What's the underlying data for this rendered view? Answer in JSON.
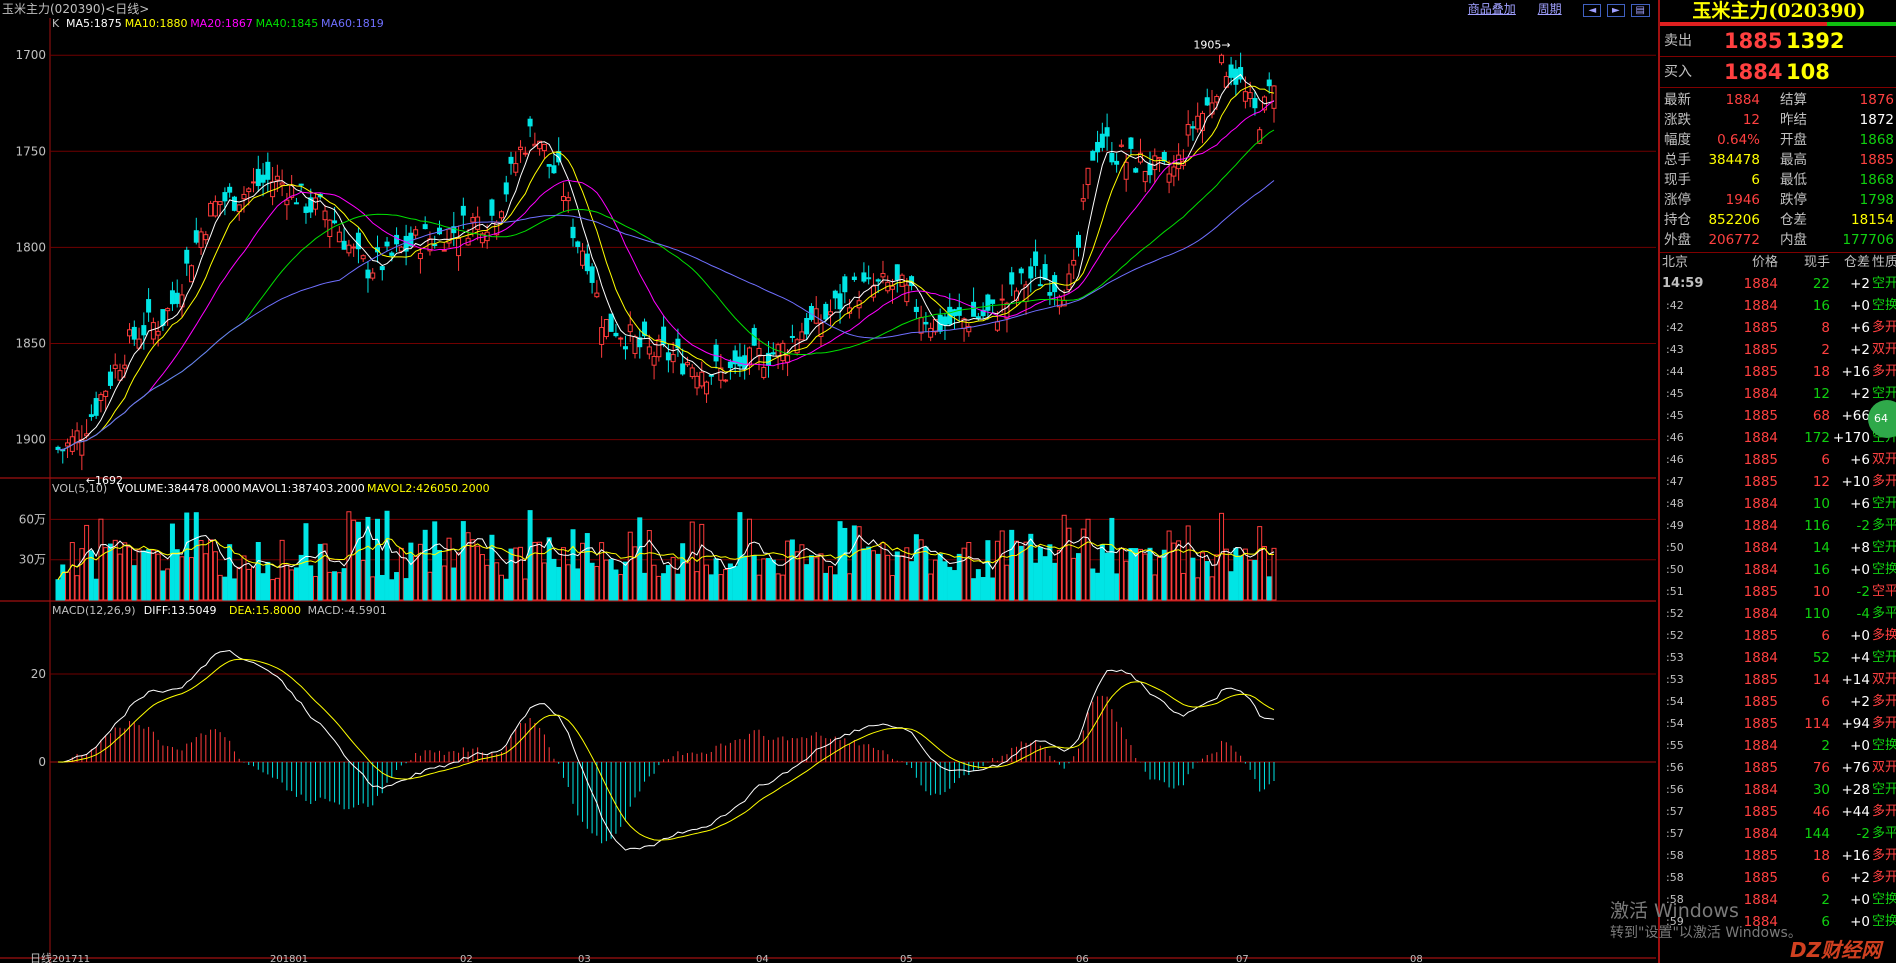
{
  "window": {
    "title": "玉米主力(020390)<日线>",
    "links": [
      "商品叠加",
      "周期"
    ],
    "nav_icons": [
      "prev-icon",
      "next-icon",
      "pager-icon"
    ]
  },
  "colors": {
    "up": "#ff3b3b",
    "down": "#00e5e5",
    "ma5": "#ffffff",
    "ma10": "#ffff00",
    "ma20": "#ff00ff",
    "ma40": "#00e000",
    "ma60": "#6f6fff",
    "grid": "#700000"
  },
  "main_chart": {
    "legend_prefix": "K",
    "legend": [
      {
        "text": "MA5:1875",
        "color": "#ffffff"
      },
      {
        "text": "MA10:1880",
        "color": "#ffff00"
      },
      {
        "text": "MA20:1867",
        "color": "#ff00ff"
      },
      {
        "text": "MA40:1845",
        "color": "#00e000"
      },
      {
        "text": "MA60:1819",
        "color": "#6f6fff"
      }
    ],
    "y_ticks": [
      "1900",
      "1850",
      "1800",
      "1750",
      "1700"
    ],
    "high_label": "1905",
    "low_label": "1692"
  },
  "volume_chart": {
    "legend": [
      {
        "text": "VOL(5,10)",
        "color": "#c0c0c0"
      },
      {
        "text": "VOLUME:384478.0000",
        "color": "#ffffff"
      },
      {
        "text": "MAVOL1:387403.2000",
        "color": "#ffffff"
      },
      {
        "text": "MAVOL2:426050.2000",
        "color": "#ffff00"
      }
    ],
    "y_ticks": [
      "60万",
      "30万"
    ]
  },
  "macd_chart": {
    "legend": [
      {
        "text": "MACD(12,26,9)",
        "color": "#c0c0c0"
      },
      {
        "text": "DIFF:13.5049",
        "color": "#ffffff"
      },
      {
        "text": "DEA:15.8000",
        "color": "#ffff00"
      },
      {
        "text": "MACD:-4.5901",
        "color": "#c0c0c0"
      }
    ],
    "y_ticks": [
      "20",
      "0"
    ]
  },
  "x_axis": {
    "corner_label": "日线",
    "labels": [
      "201711",
      "201801",
      "02",
      "03",
      "04",
      "05",
      "06",
      "07",
      "08"
    ]
  },
  "chart_data": {
    "type": "candlestick",
    "symbol": "玉米主力(020390)",
    "period": "日线",
    "ylim": [
      1680,
      1910
    ],
    "y_ticks": [
      1700,
      1750,
      1800,
      1850,
      1900
    ],
    "anchors": [
      {
        "x": 0,
        "close": 1695
      },
      {
        "x": 20,
        "close": 1760
      },
      {
        "x": 35,
        "close": 1825
      },
      {
        "x": 45,
        "close": 1835
      },
      {
        "x": 55,
        "close": 1820
      },
      {
        "x": 65,
        "close": 1790
      },
      {
        "x": 78,
        "close": 1805
      },
      {
        "x": 90,
        "close": 1815
      },
      {
        "x": 100,
        "close": 1860
      },
      {
        "x": 104,
        "close": 1840
      },
      {
        "x": 110,
        "close": 1800
      },
      {
        "x": 115,
        "close": 1760
      },
      {
        "x": 125,
        "close": 1745
      },
      {
        "x": 140,
        "close": 1735
      },
      {
        "x": 150,
        "close": 1745
      },
      {
        "x": 158,
        "close": 1760
      },
      {
        "x": 168,
        "close": 1778
      },
      {
        "x": 175,
        "close": 1780
      },
      {
        "x": 185,
        "close": 1760
      },
      {
        "x": 195,
        "close": 1765
      },
      {
        "x": 205,
        "close": 1785
      },
      {
        "x": 212,
        "close": 1780
      },
      {
        "x": 218,
        "close": 1855
      },
      {
        "x": 225,
        "close": 1845
      },
      {
        "x": 233,
        "close": 1838
      },
      {
        "x": 240,
        "close": 1870
      },
      {
        "x": 245,
        "close": 1895
      },
      {
        "x": 252,
        "close": 1868
      },
      {
        "x": 255,
        "close": 1884
      }
    ],
    "high": 1905,
    "low": 1692,
    "last": {
      "close": 1884,
      "ma5": 1875,
      "ma10": 1880,
      "ma20": 1867,
      "ma40": 1845,
      "ma60": 1819
    },
    "volume": {
      "last": 384478,
      "mavol1": 387403.2,
      "mavol2": 426050.2,
      "y_ticks_wan": [
        60,
        30
      ]
    },
    "macd": {
      "diff": 13.5049,
      "dea": 15.8,
      "macd": -4.5901,
      "y_ticks": [
        20,
        0
      ],
      "ylim": [
        -40,
        35
      ]
    }
  },
  "panel": {
    "title": "玉米主力(020390)",
    "sell": {
      "label": "卖出",
      "price": "1885",
      "volume": "1392"
    },
    "buy": {
      "label": "买入",
      "price": "1884",
      "volume": "108"
    },
    "stats": [
      {
        "k1": "最新",
        "v1": "1884",
        "c1": "red",
        "k2": "结算",
        "v2": "1876",
        "c2": "red"
      },
      {
        "k1": "涨跌",
        "v1": "12",
        "c1": "red",
        "k2": "昨结",
        "v2": "1872",
        "c2": "white"
      },
      {
        "k1": "幅度",
        "v1": "0.64%",
        "c1": "red",
        "k2": "开盘",
        "v2": "1868",
        "c2": "green"
      },
      {
        "k1": "总手",
        "v1": "384478",
        "c1": "yellow",
        "k2": "最高",
        "v2": "1885",
        "c2": "red"
      },
      {
        "k1": "现手",
        "v1": "6",
        "c1": "yellow",
        "k2": "最低",
        "v2": "1868",
        "c2": "green"
      },
      {
        "k1": "涨停",
        "v1": "1946",
        "c1": "red",
        "k2": "跌停",
        "v2": "1798",
        "c2": "green"
      },
      {
        "k1": "持仓",
        "v1": "852206",
        "c1": "yellow",
        "k2": "仓差",
        "v2": "18154",
        "c2": "yellow"
      },
      {
        "k1": "外盘",
        "v1": "206772",
        "c1": "red",
        "k2": "内盘",
        "v2": "177706",
        "c2": "green"
      }
    ],
    "tick_header": [
      "北京",
      "价格",
      "现手",
      "仓差",
      "性质"
    ],
    "ticks": [
      {
        "t": "14:59",
        "p": "1884",
        "v": "22",
        "d": "+2",
        "n": "空开",
        "pc": "red",
        "nc": "green"
      },
      {
        "t": ":42",
        "p": "1884",
        "v": "16",
        "d": "+0",
        "n": "空换",
        "pc": "red",
        "nc": "green"
      },
      {
        "t": ":42",
        "p": "1885",
        "v": "8",
        "d": "+6",
        "n": "多开",
        "pc": "red",
        "nc": "red"
      },
      {
        "t": ":43",
        "p": "1885",
        "v": "2",
        "d": "+2",
        "n": "双开",
        "pc": "red",
        "nc": "red"
      },
      {
        "t": ":44",
        "p": "1885",
        "v": "18",
        "d": "+16",
        "n": "多开",
        "pc": "red",
        "nc": "red"
      },
      {
        "t": ":45",
        "p": "1884",
        "v": "12",
        "d": "+2",
        "n": "空开",
        "pc": "red",
        "nc": "green"
      },
      {
        "t": ":45",
        "p": "1885",
        "v": "68",
        "d": "+66",
        "n": "多开",
        "pc": "red",
        "nc": "red"
      },
      {
        "t": ":46",
        "p": "1884",
        "v": "172",
        "d": "+170",
        "n": "空开",
        "pc": "red",
        "nc": "green"
      },
      {
        "t": ":46",
        "p": "1885",
        "v": "6",
        "d": "+6",
        "n": "双开",
        "pc": "red",
        "nc": "red"
      },
      {
        "t": ":47",
        "p": "1885",
        "v": "12",
        "d": "+10",
        "n": "多开",
        "pc": "red",
        "nc": "red"
      },
      {
        "t": ":48",
        "p": "1884",
        "v": "10",
        "d": "+6",
        "n": "空开",
        "pc": "red",
        "nc": "green"
      },
      {
        "t": ":49",
        "p": "1884",
        "v": "116",
        "d": "-2",
        "n": "多平",
        "pc": "red",
        "nc": "green"
      },
      {
        "t": ":50",
        "p": "1884",
        "v": "14",
        "d": "+8",
        "n": "空开",
        "pc": "red",
        "nc": "green"
      },
      {
        "t": ":50",
        "p": "1884",
        "v": "16",
        "d": "+0",
        "n": "空换",
        "pc": "red",
        "nc": "green"
      },
      {
        "t": ":51",
        "p": "1885",
        "v": "10",
        "d": "-2",
        "n": "空平",
        "pc": "red",
        "nc": "red"
      },
      {
        "t": ":52",
        "p": "1884",
        "v": "110",
        "d": "-4",
        "n": "多平",
        "pc": "red",
        "nc": "green"
      },
      {
        "t": ":52",
        "p": "1885",
        "v": "6",
        "d": "+0",
        "n": "多换",
        "pc": "red",
        "nc": "red"
      },
      {
        "t": ":53",
        "p": "1884",
        "v": "52",
        "d": "+4",
        "n": "空开",
        "pc": "red",
        "nc": "green"
      },
      {
        "t": ":53",
        "p": "1885",
        "v": "14",
        "d": "+14",
        "n": "双开",
        "pc": "red",
        "nc": "red"
      },
      {
        "t": ":54",
        "p": "1885",
        "v": "6",
        "d": "+2",
        "n": "多开",
        "pc": "red",
        "nc": "red"
      },
      {
        "t": ":54",
        "p": "1885",
        "v": "114",
        "d": "+94",
        "n": "多开",
        "pc": "red",
        "nc": "red"
      },
      {
        "t": ":55",
        "p": "1884",
        "v": "2",
        "d": "+0",
        "n": "空换",
        "pc": "red",
        "nc": "green"
      },
      {
        "t": ":56",
        "p": "1885",
        "v": "76",
        "d": "+76",
        "n": "双开",
        "pc": "red",
        "nc": "red"
      },
      {
        "t": ":56",
        "p": "1884",
        "v": "30",
        "d": "+28",
        "n": "空开",
        "pc": "red",
        "nc": "green"
      },
      {
        "t": ":57",
        "p": "1885",
        "v": "46",
        "d": "+44",
        "n": "多开",
        "pc": "red",
        "nc": "red"
      },
      {
        "t": ":57",
        "p": "1884",
        "v": "144",
        "d": "-2",
        "n": "多平",
        "pc": "red",
        "nc": "green"
      },
      {
        "t": ":58",
        "p": "1885",
        "v": "18",
        "d": "+16",
        "n": "多开",
        "pc": "red",
        "nc": "red"
      },
      {
        "t": ":58",
        "p": "1885",
        "v": "6",
        "d": "+2",
        "n": "多开",
        "pc": "red",
        "nc": "red"
      },
      {
        "t": ":58",
        "p": "1884",
        "v": "2",
        "d": "+0",
        "n": "空换",
        "pc": "red",
        "nc": "green"
      },
      {
        "t": ":59",
        "p": "1884",
        "v": "6",
        "d": "+0",
        "n": "空换",
        "pc": "red",
        "nc": "green"
      }
    ],
    "bubble_text": "64"
  },
  "overlay": {
    "watermark_line1": "激活 Windows",
    "watermark_line2": "转到\"设置\"以激活 Windows。",
    "site_logo": "DZ财经网"
  }
}
